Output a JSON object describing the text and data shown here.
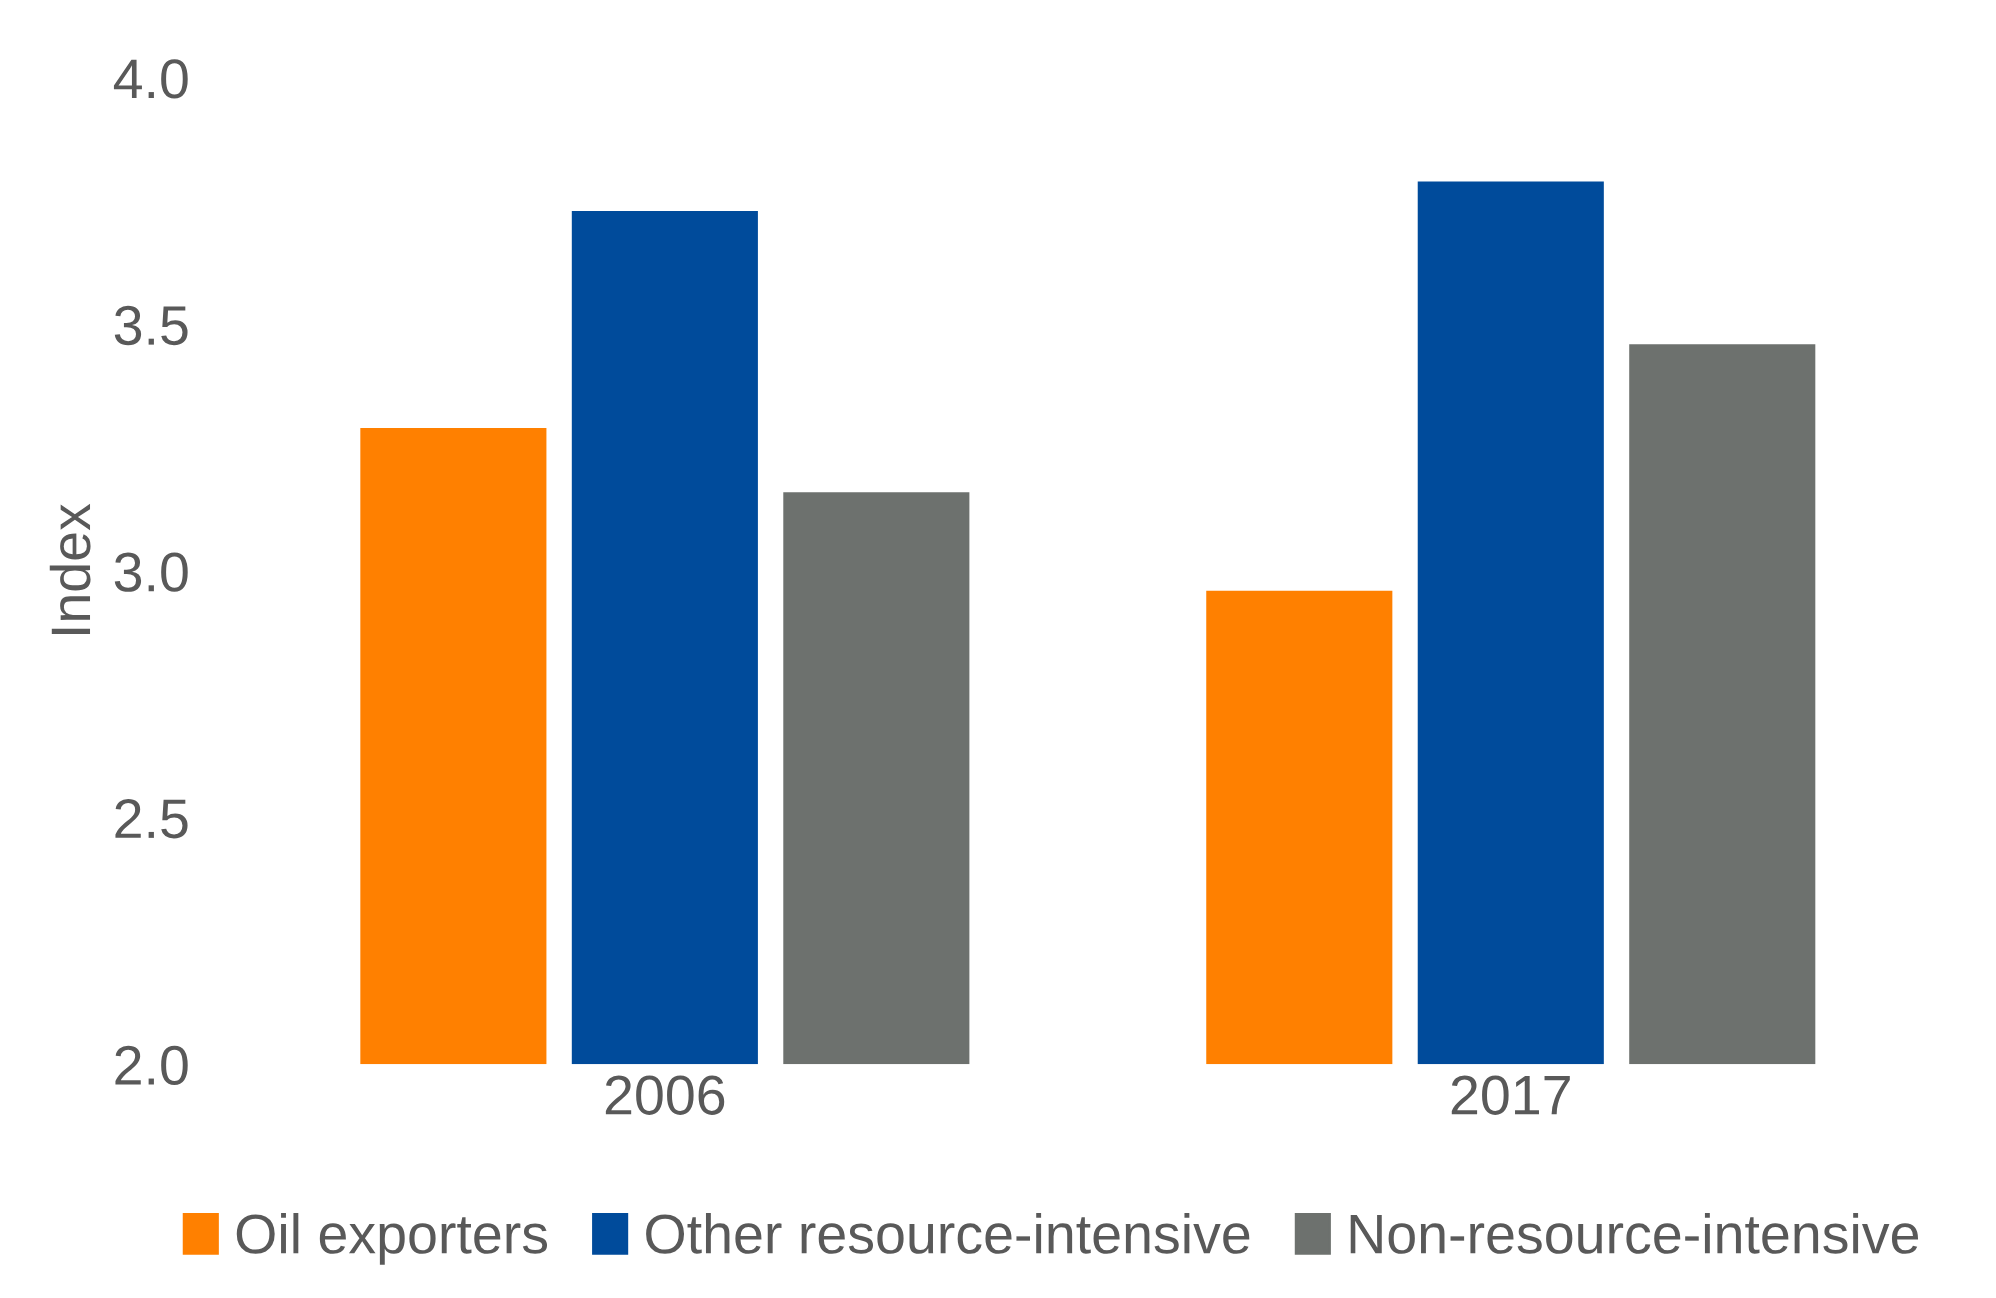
{
  "chart_data": {
    "type": "bar",
    "ylabel": "Index",
    "categories": [
      "2006",
      "2017"
    ],
    "series": [
      {
        "name": "Oil exporters",
        "color": "#ff8000",
        "values": [
          3.29,
          2.96
        ]
      },
      {
        "name": "Other resource-intensive",
        "color": "#004b9b",
        "values": [
          3.73,
          3.79
        ]
      },
      {
        "name": "Non-resource-intensive",
        "color": "#6d716e",
        "values": [
          3.16,
          3.46
        ]
      }
    ],
    "ylim": [
      2.0,
      4.0
    ],
    "yticks": [
      {
        "value": 2.0,
        "label": "2.0"
      },
      {
        "value": 2.5,
        "label": "2.5"
      },
      {
        "value": 3.0,
        "label": "3.0"
      },
      {
        "value": 3.5,
        "label": "3.5"
      },
      {
        "value": 4.0,
        "label": "4.0"
      }
    ],
    "grid": false,
    "legend": "bottom"
  }
}
